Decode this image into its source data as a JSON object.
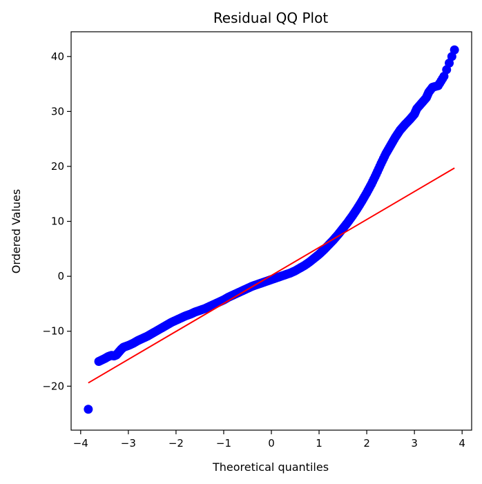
{
  "chart_data": {
    "type": "scatter",
    "title": "Residual QQ Plot",
    "xlabel": "Theoretical quantiles",
    "ylabel": "Ordered Values",
    "xlim": [
      -4.2,
      4.2
    ],
    "ylim": [
      -28,
      44.5
    ],
    "xticks": [
      -4,
      -3,
      -2,
      -1,
      0,
      1,
      2,
      3,
      4
    ],
    "xtick_labels": [
      "−4",
      "−3",
      "−2",
      "−1",
      "0",
      "1",
      "2",
      "3",
      "4"
    ],
    "yticks": [
      -20,
      -10,
      0,
      10,
      20,
      30,
      40
    ],
    "ytick_labels": [
      "−20",
      "−10",
      "0",
      "10",
      "20",
      "30",
      "40"
    ],
    "grid": false,
    "series": [
      {
        "kind": "points",
        "color": "#0000ff",
        "points": [
          [
            -3.84,
            -24.2
          ],
          [
            -3.62,
            -15.5
          ],
          [
            -3.5,
            -15.0
          ],
          [
            -3.42,
            -14.6
          ],
          [
            -3.35,
            -14.4
          ],
          [
            -3.3,
            -14.5
          ],
          [
            -3.25,
            -14.3
          ],
          [
            -3.2,
            -13.8
          ],
          [
            -3.15,
            -13.3
          ],
          [
            -3.1,
            -12.9
          ],
          [
            -3.0,
            -12.6
          ],
          [
            -2.9,
            -12.2
          ],
          [
            -2.8,
            -11.7
          ],
          [
            -2.7,
            -11.3
          ],
          [
            -2.6,
            -10.9
          ],
          [
            -2.5,
            -10.4
          ],
          [
            -2.4,
            -9.9
          ],
          [
            -2.3,
            -9.4
          ],
          [
            -2.2,
            -8.9
          ],
          [
            -2.1,
            -8.4
          ],
          [
            -2.0,
            -8.0
          ],
          [
            -1.9,
            -7.6
          ],
          [
            -1.8,
            -7.2
          ],
          [
            -1.7,
            -6.9
          ],
          [
            -1.6,
            -6.5
          ],
          [
            -1.5,
            -6.2
          ],
          [
            -1.4,
            -5.9
          ],
          [
            -1.3,
            -5.5
          ],
          [
            -1.2,
            -5.1
          ],
          [
            -1.1,
            -4.7
          ],
          [
            -1.0,
            -4.3
          ],
          [
            -0.9,
            -3.8
          ],
          [
            -0.8,
            -3.4
          ],
          [
            -0.7,
            -3.0
          ],
          [
            -0.6,
            -2.6
          ],
          [
            -0.5,
            -2.2
          ],
          [
            -0.4,
            -1.8
          ],
          [
            -0.3,
            -1.5
          ],
          [
            -0.2,
            -1.2
          ],
          [
            -0.1,
            -0.9
          ],
          [
            0.0,
            -0.6
          ],
          [
            0.1,
            -0.3
          ],
          [
            0.2,
            0.0
          ],
          [
            0.3,
            0.3
          ],
          [
            0.4,
            0.6
          ],
          [
            0.5,
            1.0
          ],
          [
            0.6,
            1.5
          ],
          [
            0.7,
            2.0
          ],
          [
            0.8,
            2.6
          ],
          [
            0.9,
            3.3
          ],
          [
            1.0,
            4.0
          ],
          [
            1.1,
            4.8
          ],
          [
            1.2,
            5.7
          ],
          [
            1.3,
            6.6
          ],
          [
            1.4,
            7.6
          ],
          [
            1.5,
            8.7
          ],
          [
            1.6,
            9.8
          ],
          [
            1.7,
            11.0
          ],
          [
            1.8,
            12.3
          ],
          [
            1.9,
            13.7
          ],
          [
            2.0,
            15.2
          ],
          [
            2.1,
            16.8
          ],
          [
            2.2,
            18.6
          ],
          [
            2.3,
            20.5
          ],
          [
            2.4,
            22.3
          ],
          [
            2.5,
            23.8
          ],
          [
            2.6,
            25.3
          ],
          [
            2.7,
            26.6
          ],
          [
            2.8,
            27.6
          ],
          [
            2.9,
            28.5
          ],
          [
            3.0,
            29.5
          ],
          [
            3.05,
            30.5
          ],
          [
            3.15,
            31.5
          ],
          [
            3.25,
            32.5
          ],
          [
            3.3,
            33.5
          ],
          [
            3.38,
            34.4
          ],
          [
            3.5,
            34.7
          ],
          [
            3.62,
            36.4
          ],
          [
            3.84,
            41.2
          ]
        ]
      },
      {
        "kind": "line",
        "color": "#ff0000",
        "points": [
          [
            -3.84,
            -19.4
          ],
          [
            3.84,
            19.7
          ]
        ]
      }
    ]
  }
}
